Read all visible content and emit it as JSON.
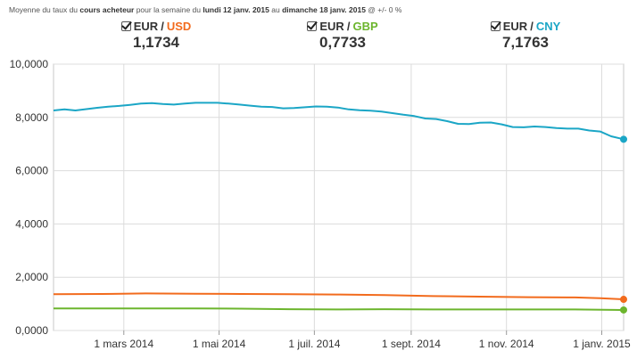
{
  "header": {
    "subtitle_parts": [
      {
        "text": "Moyenne du taux du ",
        "bold": false
      },
      {
        "text": "cours acheteur",
        "bold": true
      },
      {
        "text": " pour la semaine du ",
        "bold": false
      },
      {
        "text": "lundi 12 janv. 2015",
        "bold": true
      },
      {
        "text": " au ",
        "bold": false
      },
      {
        "text": "dimanche 18 janv. 2015",
        "bold": true
      },
      {
        "text": " @ +/- 0 %",
        "bold": false
      }
    ]
  },
  "legend": [
    {
      "base": "EUR",
      "sep": "/",
      "quote": "USD",
      "value": "1,1734",
      "color": "#f26b1d",
      "checked": true
    },
    {
      "base": "EUR",
      "sep": "/",
      "quote": "GBP",
      "value": "0,7733",
      "color": "#6cb52d",
      "checked": true
    },
    {
      "base": "EUR",
      "sep": "/",
      "quote": "CNY",
      "value": "7,1763",
      "color": "#1ba6c6",
      "checked": true
    }
  ],
  "chart_data": {
    "type": "line",
    "title": "",
    "xlabel": "",
    "ylabel": "",
    "ylim": [
      0,
      10
    ],
    "yticks": [
      0,
      2,
      4,
      6,
      8,
      10
    ],
    "ytick_labels": [
      "0,0000",
      "2,0000",
      "4,0000",
      "6,0000",
      "8,0000",
      "10,0000"
    ],
    "x_start": "2014-01-15",
    "x_end": "2015-01-15",
    "xticks": [
      "2014-03-01",
      "2014-05-01",
      "2014-07-01",
      "2014-09-01",
      "2014-11-01",
      "2015-01-01"
    ],
    "xtick_labels": [
      "1 mars 2014",
      "1 mai 2014",
      "1 juil. 2014",
      "1 sept. 2014",
      "1 nov. 2014",
      "1 janv. 2015"
    ],
    "grid": true,
    "series": [
      {
        "name": "EUR / CNY",
        "color": "#1ba6c6",
        "points": [
          [
            "2014-01-15",
            8.26
          ],
          [
            "2014-01-22",
            8.3
          ],
          [
            "2014-01-29",
            8.26
          ],
          [
            "2014-02-05",
            8.31
          ],
          [
            "2014-02-12",
            8.36
          ],
          [
            "2014-02-19",
            8.4
          ],
          [
            "2014-02-26",
            8.43
          ],
          [
            "2014-03-05",
            8.47
          ],
          [
            "2014-03-12",
            8.52
          ],
          [
            "2014-03-19",
            8.54
          ],
          [
            "2014-03-26",
            8.5
          ],
          [
            "2014-04-02",
            8.48
          ],
          [
            "2014-04-09",
            8.52
          ],
          [
            "2014-04-16",
            8.55
          ],
          [
            "2014-04-23",
            8.55
          ],
          [
            "2014-04-30",
            8.55
          ],
          [
            "2014-05-07",
            8.52
          ],
          [
            "2014-05-14",
            8.48
          ],
          [
            "2014-05-21",
            8.44
          ],
          [
            "2014-05-28",
            8.4
          ],
          [
            "2014-06-04",
            8.39
          ],
          [
            "2014-06-11",
            8.34
          ],
          [
            "2014-06-18",
            8.35
          ],
          [
            "2014-06-25",
            8.38
          ],
          [
            "2014-07-02",
            8.41
          ],
          [
            "2014-07-09",
            8.4
          ],
          [
            "2014-07-16",
            8.37
          ],
          [
            "2014-07-23",
            8.3
          ],
          [
            "2014-07-30",
            8.27
          ],
          [
            "2014-08-06",
            8.25
          ],
          [
            "2014-08-13",
            8.22
          ],
          [
            "2014-08-20",
            8.16
          ],
          [
            "2014-08-27",
            8.1
          ],
          [
            "2014-09-03",
            8.05
          ],
          [
            "2014-09-10",
            7.96
          ],
          [
            "2014-09-17",
            7.94
          ],
          [
            "2014-09-24",
            7.86
          ],
          [
            "2014-10-01",
            7.76
          ],
          [
            "2014-10-08",
            7.75
          ],
          [
            "2014-10-15",
            7.8
          ],
          [
            "2014-10-22",
            7.81
          ],
          [
            "2014-10-29",
            7.74
          ],
          [
            "2014-11-05",
            7.64
          ],
          [
            "2014-11-12",
            7.63
          ],
          [
            "2014-11-19",
            7.66
          ],
          [
            "2014-11-26",
            7.64
          ],
          [
            "2014-12-03",
            7.6
          ],
          [
            "2014-12-10",
            7.58
          ],
          [
            "2014-12-17",
            7.58
          ],
          [
            "2014-12-24",
            7.51
          ],
          [
            "2014-12-31",
            7.47
          ],
          [
            "2015-01-07",
            7.29
          ],
          [
            "2015-01-15",
            7.18
          ]
        ]
      },
      {
        "name": "EUR / USD",
        "color": "#f26b1d",
        "points": [
          [
            "2014-01-15",
            1.36
          ],
          [
            "2014-02-15",
            1.37
          ],
          [
            "2014-03-15",
            1.39
          ],
          [
            "2014-04-15",
            1.38
          ],
          [
            "2014-05-15",
            1.37
          ],
          [
            "2014-06-15",
            1.36
          ],
          [
            "2014-07-15",
            1.35
          ],
          [
            "2014-08-15",
            1.33
          ],
          [
            "2014-09-15",
            1.29
          ],
          [
            "2014-10-15",
            1.27
          ],
          [
            "2014-11-15",
            1.25
          ],
          [
            "2014-12-15",
            1.24
          ],
          [
            "2014-12-31",
            1.21
          ],
          [
            "2015-01-15",
            1.17
          ]
        ]
      },
      {
        "name": "EUR / GBP",
        "color": "#6cb52d",
        "points": [
          [
            "2014-01-15",
            0.83
          ],
          [
            "2014-02-15",
            0.83
          ],
          [
            "2014-03-15",
            0.83
          ],
          [
            "2014-04-15",
            0.83
          ],
          [
            "2014-05-15",
            0.82
          ],
          [
            "2014-06-15",
            0.8
          ],
          [
            "2014-07-15",
            0.79
          ],
          [
            "2014-08-15",
            0.8
          ],
          [
            "2014-09-15",
            0.79
          ],
          [
            "2014-10-15",
            0.79
          ],
          [
            "2014-11-15",
            0.79
          ],
          [
            "2014-12-15",
            0.79
          ],
          [
            "2015-01-15",
            0.77
          ]
        ]
      }
    ]
  }
}
